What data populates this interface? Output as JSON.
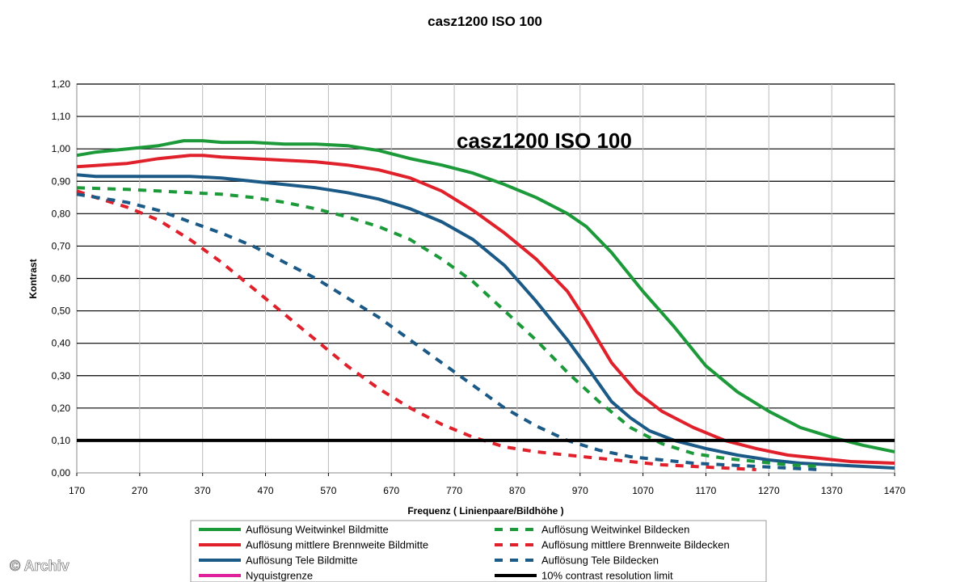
{
  "chart_data": {
    "type": "line",
    "title": "casz1200 ISO 100",
    "inner_title": "casz1200 ISO 100",
    "xlabel": "Frequenz ( Linienpaare/Bildhöhe )",
    "ylabel": "Kontrast",
    "xlim": [
      170,
      1470
    ],
    "ylim": [
      0,
      1.2
    ],
    "x_ticks": [
      "170",
      "270",
      "370",
      "470",
      "570",
      "670",
      "770",
      "870",
      "970",
      "1070",
      "1170",
      "1270",
      "1370",
      "1470"
    ],
    "y_ticks": [
      "0,00",
      "0,10",
      "0,20",
      "0,30",
      "0,40",
      "0,50",
      "0,60",
      "0,70",
      "0,80",
      "0,90",
      "1,00",
      "1,10",
      "1,20"
    ],
    "grid": true,
    "legend_position": "bottom",
    "series": [
      {
        "name": "Auflösung Weitwinkel Bildmitte",
        "color": "#1c9a3a",
        "dashed": false,
        "x": [
          170,
          200,
          250,
          300,
          340,
          370,
          400,
          450,
          500,
          550,
          600,
          650,
          700,
          750,
          800,
          850,
          900,
          950,
          980,
          1020,
          1070,
          1120,
          1170,
          1220,
          1270,
          1320,
          1370,
          1420,
          1470
        ],
        "y": [
          0.98,
          0.99,
          1.0,
          1.01,
          1.025,
          1.025,
          1.02,
          1.02,
          1.015,
          1.015,
          1.01,
          0.995,
          0.97,
          0.95,
          0.925,
          0.89,
          0.85,
          0.8,
          0.76,
          0.68,
          0.56,
          0.45,
          0.33,
          0.25,
          0.19,
          0.14,
          0.11,
          0.085,
          0.065
        ]
      },
      {
        "name": "Auflösung mittlere Brennweite Bildmitte",
        "color": "#e0202a",
        "dashed": false,
        "x": [
          170,
          250,
          300,
          350,
          370,
          400,
          450,
          500,
          550,
          600,
          650,
          700,
          750,
          800,
          850,
          900,
          950,
          980,
          1020,
          1060,
          1100,
          1150,
          1200,
          1250,
          1300,
          1350,
          1400,
          1470
        ],
        "y": [
          0.945,
          0.955,
          0.97,
          0.98,
          0.98,
          0.975,
          0.97,
          0.965,
          0.96,
          0.95,
          0.935,
          0.91,
          0.87,
          0.81,
          0.74,
          0.66,
          0.56,
          0.47,
          0.34,
          0.25,
          0.19,
          0.14,
          0.1,
          0.075,
          0.055,
          0.045,
          0.035,
          0.03
        ]
      },
      {
        "name": "Auflösung Tele Bildmitte",
        "color": "#1b5a86",
        "dashed": false,
        "x": [
          170,
          200,
          250,
          300,
          350,
          400,
          450,
          500,
          550,
          600,
          650,
          700,
          750,
          800,
          850,
          900,
          950,
          980,
          1020,
          1050,
          1080,
          1120,
          1170,
          1220,
          1270,
          1320,
          1370,
          1420,
          1470
        ],
        "y": [
          0.92,
          0.915,
          0.915,
          0.915,
          0.915,
          0.91,
          0.9,
          0.89,
          0.88,
          0.865,
          0.845,
          0.815,
          0.775,
          0.72,
          0.64,
          0.53,
          0.41,
          0.33,
          0.22,
          0.17,
          0.13,
          0.1,
          0.075,
          0.055,
          0.04,
          0.03,
          0.025,
          0.02,
          0.015
        ]
      },
      {
        "name": "Nyquistgrenze",
        "color": "#e0209a",
        "dashed": false,
        "x": [],
        "y": []
      },
      {
        "name": "Auflösung Weitwinkel Bildecken",
        "color": "#1c9a3a",
        "dashed": true,
        "x": [
          170,
          250,
          300,
          350,
          400,
          450,
          500,
          550,
          600,
          650,
          700,
          750,
          800,
          850,
          900,
          950,
          1000,
          1050,
          1100,
          1150,
          1200,
          1250,
          1300,
          1350
        ],
        "y": [
          0.88,
          0.875,
          0.87,
          0.865,
          0.86,
          0.85,
          0.835,
          0.815,
          0.79,
          0.76,
          0.72,
          0.66,
          0.59,
          0.5,
          0.41,
          0.31,
          0.22,
          0.14,
          0.09,
          0.06,
          0.045,
          0.035,
          0.025,
          0.02
        ]
      },
      {
        "name": "Auflösung mittlere Brennweite Bildecken",
        "color": "#e0202a",
        "dashed": true,
        "x": [
          170,
          200,
          250,
          300,
          350,
          400,
          450,
          500,
          550,
          600,
          650,
          700,
          750,
          800,
          850,
          900,
          950,
          1000,
          1050,
          1100,
          1150,
          1200,
          1250
        ],
        "y": [
          0.87,
          0.85,
          0.82,
          0.78,
          0.72,
          0.65,
          0.57,
          0.49,
          0.41,
          0.33,
          0.26,
          0.2,
          0.15,
          0.11,
          0.08,
          0.065,
          0.055,
          0.045,
          0.035,
          0.025,
          0.02,
          0.015,
          0.01
        ]
      },
      {
        "name": "Auflösung Tele Bildecken",
        "color": "#1b5a86",
        "dashed": true,
        "x": [
          170,
          250,
          300,
          350,
          400,
          450,
          500,
          550,
          600,
          650,
          700,
          750,
          800,
          850,
          900,
          950,
          1000,
          1050,
          1100,
          1150,
          1200,
          1250,
          1300,
          1350
        ],
        "y": [
          0.86,
          0.835,
          0.81,
          0.775,
          0.74,
          0.7,
          0.65,
          0.6,
          0.54,
          0.48,
          0.41,
          0.34,
          0.27,
          0.2,
          0.145,
          0.1,
          0.07,
          0.05,
          0.04,
          0.03,
          0.025,
          0.02,
          0.015,
          0.01
        ]
      },
      {
        "name": "10% contrast resolution limit",
        "color": "#000000",
        "dashed": false,
        "x": [
          170,
          1470
        ],
        "y": [
          0.1,
          0.1
        ]
      }
    ],
    "legend_order": [
      "Auflösung Weitwinkel Bildmitte",
      "Auflösung Weitwinkel Bildecken",
      "Auflösung mittlere Brennweite Bildmitte",
      "Auflösung mittlere Brennweite Bildecken",
      "Auflösung Tele Bildmitte",
      "Auflösung Tele Bildecken",
      "Nyquistgrenze",
      "10% contrast resolution limit"
    ]
  },
  "watermark": "© Archiv"
}
